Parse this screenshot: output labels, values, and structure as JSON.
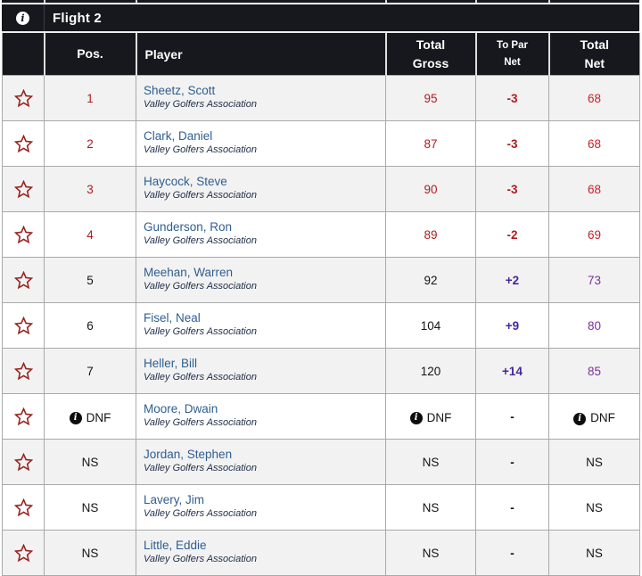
{
  "title_bar": {
    "title": "Flight 2",
    "info_icon": "info-icon"
  },
  "columns": {
    "pos": "Pos.",
    "player": "Player",
    "gross_line1": "Total",
    "gross_line2": "Gross",
    "topar_line1": "To Par",
    "topar_line2": "Net",
    "net_line1": "Total",
    "net_line2": "Net"
  },
  "colors": {
    "header_bg": "#17181d",
    "alt_row_bg": "#f2f2f2",
    "grid_border": "#a9a9a9",
    "player_link": "#2f5e91",
    "association_text": "#22304a",
    "to_par_negative": "#b01b20",
    "net_negative": "#c82127",
    "to_par_positive": "#46279b",
    "net_positive": "#7c2f9b",
    "star_outline": "#962420"
  },
  "icons": {
    "star": "star-outline-icon",
    "dnf_info": "info-icon"
  },
  "rows": [
    {
      "pos": "1",
      "pos_icon": false,
      "player": "Sheetz, Scott",
      "association": "Valley Golfers Association",
      "gross": "95",
      "gross_icon": false,
      "to_par": "-3",
      "net": "68",
      "net_icon": false,
      "tone": "red"
    },
    {
      "pos": "2",
      "pos_icon": false,
      "player": "Clark, Daniel",
      "association": "Valley Golfers Association",
      "gross": "87",
      "gross_icon": false,
      "to_par": "-3",
      "net": "68",
      "net_icon": false,
      "tone": "red"
    },
    {
      "pos": "3",
      "pos_icon": false,
      "player": "Haycock, Steve",
      "association": "Valley Golfers Association",
      "gross": "90",
      "gross_icon": false,
      "to_par": "-3",
      "net": "68",
      "net_icon": false,
      "tone": "red"
    },
    {
      "pos": "4",
      "pos_icon": false,
      "player": "Gunderson, Ron",
      "association": "Valley Golfers Association",
      "gross": "89",
      "gross_icon": false,
      "to_par": "-2",
      "net": "69",
      "net_icon": false,
      "tone": "red"
    },
    {
      "pos": "5",
      "pos_icon": false,
      "player": "Meehan, Warren",
      "association": "Valley Golfers Association",
      "gross": "92",
      "gross_icon": false,
      "to_par": "+2",
      "net": "73",
      "net_icon": false,
      "tone": "purple"
    },
    {
      "pos": "6",
      "pos_icon": false,
      "player": "Fisel, Neal",
      "association": "Valley Golfers Association",
      "gross": "104",
      "gross_icon": false,
      "to_par": "+9",
      "net": "80",
      "net_icon": false,
      "tone": "purple"
    },
    {
      "pos": "7",
      "pos_icon": false,
      "player": "Heller, Bill",
      "association": "Valley Golfers Association",
      "gross": "120",
      "gross_icon": false,
      "to_par": "+14",
      "net": "85",
      "net_icon": false,
      "tone": "purple"
    },
    {
      "pos": "DNF",
      "pos_icon": true,
      "player": "Moore, Dwain",
      "association": "Valley Golfers Association",
      "gross": "DNF",
      "gross_icon": true,
      "to_par": "-",
      "net": "DNF",
      "net_icon": true,
      "tone": "none"
    },
    {
      "pos": "NS",
      "pos_icon": false,
      "player": "Jordan, Stephen",
      "association": "Valley Golfers Association",
      "gross": "NS",
      "gross_icon": false,
      "to_par": "-",
      "net": "NS",
      "net_icon": false,
      "tone": "none"
    },
    {
      "pos": "NS",
      "pos_icon": false,
      "player": "Lavery, Jim",
      "association": "Valley Golfers Association",
      "gross": "NS",
      "gross_icon": false,
      "to_par": "-",
      "net": "NS",
      "net_icon": false,
      "tone": "none"
    },
    {
      "pos": "NS",
      "pos_icon": false,
      "player": "Little, Eddie",
      "association": "Valley Golfers Association",
      "gross": "NS",
      "gross_icon": false,
      "to_par": "-",
      "net": "NS",
      "net_icon": false,
      "tone": "none"
    }
  ]
}
